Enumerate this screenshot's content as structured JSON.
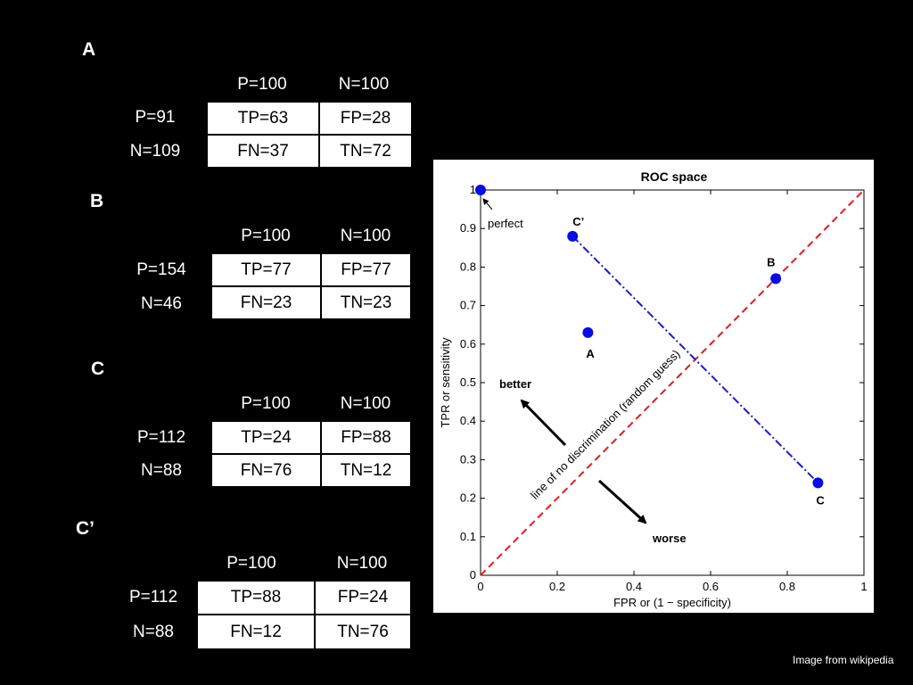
{
  "sections": [
    {
      "label": "A",
      "col_headers": [
        "P=100",
        "N=100"
      ],
      "row_headers": [
        "P=91",
        "N=109"
      ],
      "cells": [
        [
          "TP=63",
          "FP=28"
        ],
        [
          "FN=37",
          "TN=72"
        ]
      ]
    },
    {
      "label": "B",
      "col_headers": [
        "P=100",
        "N=100"
      ],
      "row_headers": [
        "P=154",
        "N=46"
      ],
      "cells": [
        [
          "TP=77",
          "FP=77"
        ],
        [
          "FN=23",
          "TN=23"
        ]
      ]
    },
    {
      "label": "C",
      "col_headers": [
        "P=100",
        "N=100"
      ],
      "row_headers": [
        "P=112",
        "N=88"
      ],
      "cells": [
        [
          "TP=24",
          "FP=88"
        ],
        [
          "FN=76",
          "TN=12"
        ]
      ]
    },
    {
      "label": "C’",
      "col_headers": [
        "P=100",
        "N=100"
      ],
      "row_headers": [
        "P=112",
        "N=88"
      ],
      "cells": [
        [
          "TP=88",
          "FP=24"
        ],
        [
          "FN=12",
          "TN=76"
        ]
      ]
    }
  ],
  "chart_data": {
    "type": "scatter",
    "title": "ROC space",
    "xlabel": "FPR or (1 − specificity)",
    "ylabel": "TPR or sensitivity",
    "xlim": [
      0,
      1
    ],
    "ylim": [
      0,
      1
    ],
    "xticks": [
      "0",
      "0.2",
      "0.4",
      "0.6",
      "0.8",
      "1"
    ],
    "yticks": [
      "0",
      "0.1",
      "0.2",
      "0.3",
      "0.4",
      "0.5",
      "0.6",
      "0.7",
      "0.8",
      "0.9",
      "1"
    ],
    "points": [
      {
        "label": "perfect",
        "x": 0,
        "y": 1
      },
      {
        "label": "A",
        "x": 0.28,
        "y": 0.63
      },
      {
        "label": "B",
        "x": 0.77,
        "y": 0.77
      },
      {
        "label": "C",
        "x": 0.88,
        "y": 0.24
      },
      {
        "label": "C’",
        "x": 0.24,
        "y": 0.88
      }
    ],
    "lines": [
      {
        "label": "line of no discrimination (random guess)",
        "x": [
          0,
          1
        ],
        "y": [
          0,
          1
        ],
        "color": "#e8191b",
        "style": "dashed"
      },
      {
        "x": [
          0.24,
          0.88
        ],
        "y": [
          0.88,
          0.24
        ],
        "color": "#1b1bd6",
        "style": "dash-dot"
      }
    ],
    "annotations": {
      "better": "better",
      "worse": "worse"
    },
    "point_color": "#0a0ae6",
    "grid": false
  },
  "credit": "Image from wikipedia"
}
